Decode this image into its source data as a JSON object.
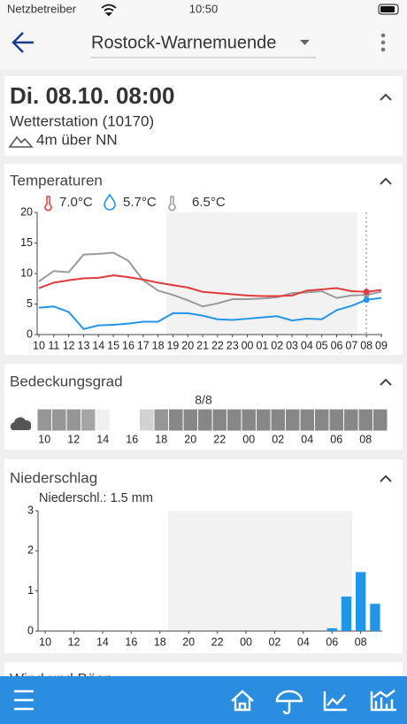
{
  "status_bar": {
    "carrier": "Netzbetreiber",
    "time": "10:50"
  },
  "header": {
    "location": "Rostock-Warnemuende"
  },
  "station": {
    "datetime": "Di. 08.10. 08:00",
    "name": "Wetterstation (10170)",
    "elevation": "4m über NN"
  },
  "chart_data": [
    {
      "type": "line",
      "title": "Temperaturen",
      "categories": [
        "10",
        "11",
        "12",
        "13",
        "14",
        "15",
        "16",
        "17",
        "18",
        "19",
        "20",
        "21",
        "22",
        "23",
        "00",
        "01",
        "02",
        "03",
        "04",
        "05",
        "06",
        "07",
        "08",
        "09"
      ],
      "ylim": [
        0,
        20
      ],
      "yticks": [
        0,
        5,
        10,
        15,
        20
      ],
      "series": [
        {
          "name": "7.0°C",
          "color": "#e23b3b",
          "values": [
            7.6,
            8.5,
            8.9,
            9.2,
            9.3,
            9.7,
            9.4,
            9.0,
            8.5,
            8.1,
            7.7,
            7.0,
            6.8,
            6.6,
            6.4,
            6.3,
            6.3,
            6.4,
            7.2,
            7.4,
            7.6,
            7.1,
            7.0,
            7.3
          ]
        },
        {
          "name": "5.7°C",
          "color": "#2196e8",
          "values": [
            4.4,
            4.6,
            3.7,
            0.9,
            1.5,
            1.6,
            1.8,
            2.1,
            2.1,
            3.5,
            3.5,
            3.1,
            2.5,
            2.4,
            2.6,
            2.8,
            3.0,
            2.3,
            2.6,
            2.5,
            4.0,
            4.7,
            5.7,
            6.0
          ]
        },
        {
          "name": "6.5°C",
          "color": "#9a9a9a",
          "values": [
            8.7,
            10.4,
            10.2,
            13.1,
            13.2,
            13.4,
            12.1,
            8.9,
            7.2,
            6.5,
            5.6,
            4.6,
            5.1,
            5.8,
            5.8,
            5.9,
            6.1,
            6.8,
            6.9,
            7.1,
            6.0,
            6.4,
            6.5,
            7.0
          ]
        }
      ]
    },
    {
      "type": "strip",
      "title": "Bedeckungsgrad",
      "annotation": "8/8",
      "categories": [
        "10",
        null,
        "12",
        null,
        "14",
        null,
        "16",
        null,
        "18",
        null,
        "20",
        null,
        "22",
        null,
        "00",
        null,
        "02",
        null,
        "04",
        null,
        "06",
        null,
        "08",
        null
      ],
      "values": [
        7,
        7,
        7,
        6,
        1,
        0,
        0,
        3,
        7,
        8,
        8,
        8,
        8,
        8,
        8,
        8,
        8,
        8,
        8,
        8,
        8,
        8,
        8,
        8
      ]
    },
    {
      "type": "bar",
      "title": "Niederschlag",
      "annotation": "Niederschl.: 1.5  mm",
      "color": "#2196e8",
      "categories": [
        "10",
        null,
        "12",
        null,
        "14",
        null,
        "16",
        null,
        "18",
        null,
        "20",
        null,
        "22",
        null,
        "00",
        null,
        "02",
        null,
        "04",
        null,
        "06",
        null,
        "08",
        null
      ],
      "ylim": [
        0,
        3
      ],
      "yticks": [
        0,
        1,
        2,
        3
      ],
      "values": [
        0,
        0,
        0,
        0,
        0,
        0,
        0,
        0,
        0,
        0,
        0,
        0,
        0,
        0,
        0,
        0,
        0,
        0,
        0,
        0,
        0.07,
        0.86,
        1.47,
        0.68
      ]
    }
  ],
  "next_section": "Wind und Böen"
}
